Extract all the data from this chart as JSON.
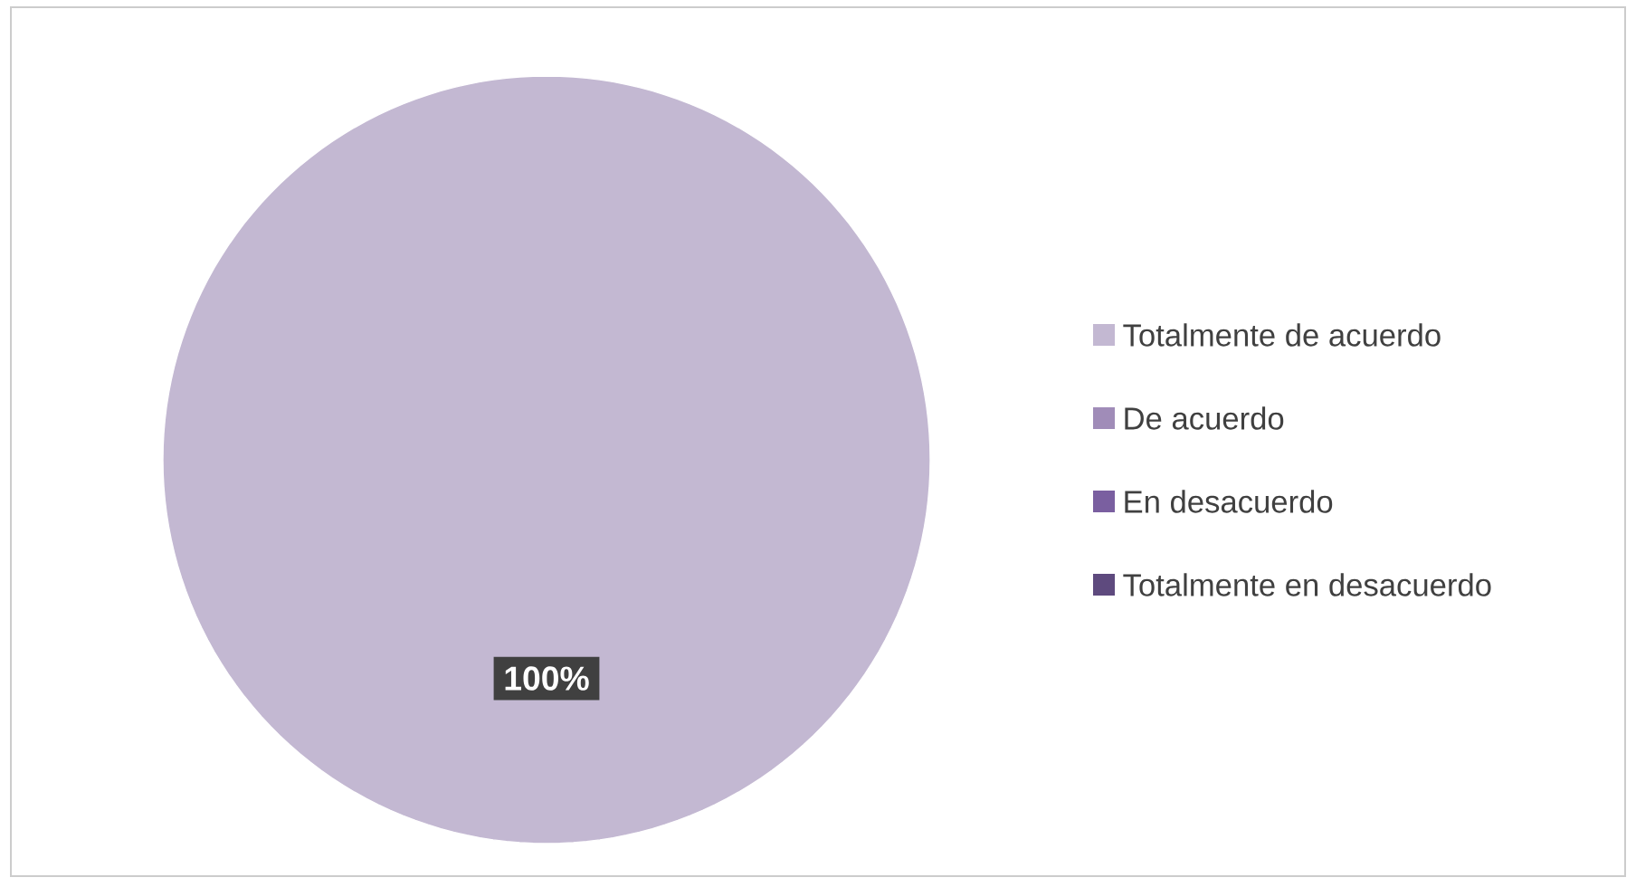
{
  "chart_data": {
    "type": "pie",
    "categories": [
      "Totalmente de acuerdo",
      "De acuerdo",
      "En desacuerdo",
      "Totalmente en desacuerdo"
    ],
    "values": [
      100,
      0,
      0,
      0
    ],
    "colors": [
      "#c3b8d2",
      "#a08cb8",
      "#7a5fa0",
      "#5e4a7e"
    ],
    "value_labels": [
      "100%",
      null,
      null,
      null
    ],
    "legend": "right"
  }
}
